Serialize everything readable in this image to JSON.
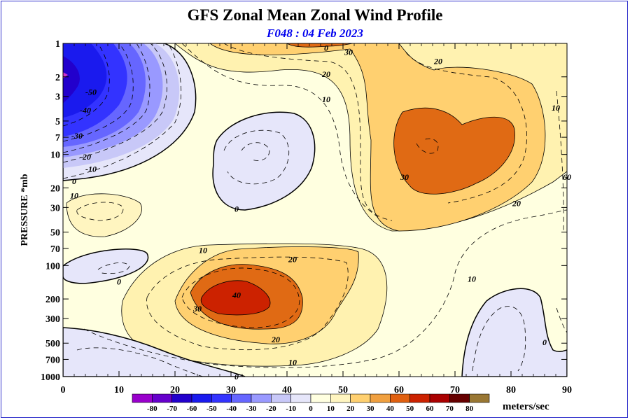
{
  "chart_data": {
    "type": "heatmap",
    "title": "GFS Zonal Mean Zonal Wind Profile",
    "subtitle": "F048 : 04 Feb 2023",
    "xlabel": "",
    "ylabel": "PRESSURE *mb",
    "x_range": [
      0,
      90
    ],
    "x_ticks": [
      0,
      10,
      20,
      30,
      40,
      50,
      60,
      70,
      80,
      90
    ],
    "y_axis_scale": "log",
    "y_range": [
      1000,
      1
    ],
    "y_ticks": [
      1,
      2,
      3,
      5,
      7,
      10,
      20,
      30,
      50,
      70,
      100,
      200,
      300,
      500,
      700,
      1000
    ],
    "units_label": "meters/sec",
    "colorbar": {
      "levels": [
        -80,
        -70,
        -60,
        -50,
        -40,
        -30,
        -20,
        -10,
        0,
        10,
        20,
        30,
        40,
        50,
        60,
        70,
        80
      ],
      "colors": [
        "#9900cc",
        "#6600cc",
        "#2200cc",
        "#1a1aee",
        "#3333ff",
        "#6666ff",
        "#9999ff",
        "#c8c8f8",
        "#e6e6fa",
        "#ffffe0",
        "#fff5c0",
        "#ffd070",
        "#f0a040",
        "#e06010",
        "#cc2200",
        "#aa0000",
        "#660000",
        "#997733"
      ]
    },
    "contour_labels": [
      {
        "lat": 47,
        "p": 1.1,
        "text": "0"
      },
      {
        "lat": 51,
        "p": 1.2,
        "text": "30"
      },
      {
        "lat": 67,
        "p": 1.45,
        "text": "20"
      },
      {
        "lat": 47,
        "p": 1.9,
        "text": "20"
      },
      {
        "lat": 47,
        "p": 3.2,
        "text": "10"
      },
      {
        "lat": 88,
        "p": 3.8,
        "text": "10"
      },
      {
        "lat": 5,
        "p": 2.75,
        "text": "-50"
      },
      {
        "lat": 4,
        "p": 4.0,
        "text": "-40"
      },
      {
        "lat": 2.5,
        "p": 6.8,
        "text": "-30"
      },
      {
        "lat": 4,
        "p": 10.5,
        "text": "-20"
      },
      {
        "lat": 5,
        "p": 13.5,
        "text": "-10"
      },
      {
        "lat": 2,
        "p": 17.5,
        "text": "0"
      },
      {
        "lat": 2,
        "p": 23.5,
        "text": "10"
      },
      {
        "lat": 61,
        "p": 16.0,
        "text": "30"
      },
      {
        "lat": 90,
        "p": 16.0,
        "text": "60"
      },
      {
        "lat": 81,
        "p": 27.5,
        "text": "20"
      },
      {
        "lat": 31,
        "p": 31.0,
        "text": "0"
      },
      {
        "lat": 25,
        "p": 73.0,
        "text": "10"
      },
      {
        "lat": 41,
        "p": 88.0,
        "text": "20"
      },
      {
        "lat": 73,
        "p": 132.0,
        "text": "10"
      },
      {
        "lat": 10,
        "p": 140.0,
        "text": "0"
      },
      {
        "lat": 31,
        "p": 185.0,
        "text": "40"
      },
      {
        "lat": 24,
        "p": 245.0,
        "text": "30"
      },
      {
        "lat": 38,
        "p": 465.0,
        "text": "20"
      },
      {
        "lat": 41,
        "p": 740.0,
        "text": "10"
      },
      {
        "lat": 86,
        "p": 490.0,
        "text": "0"
      },
      {
        "lat": 31,
        "p": 1000.0,
        "text": "0"
      }
    ]
  }
}
